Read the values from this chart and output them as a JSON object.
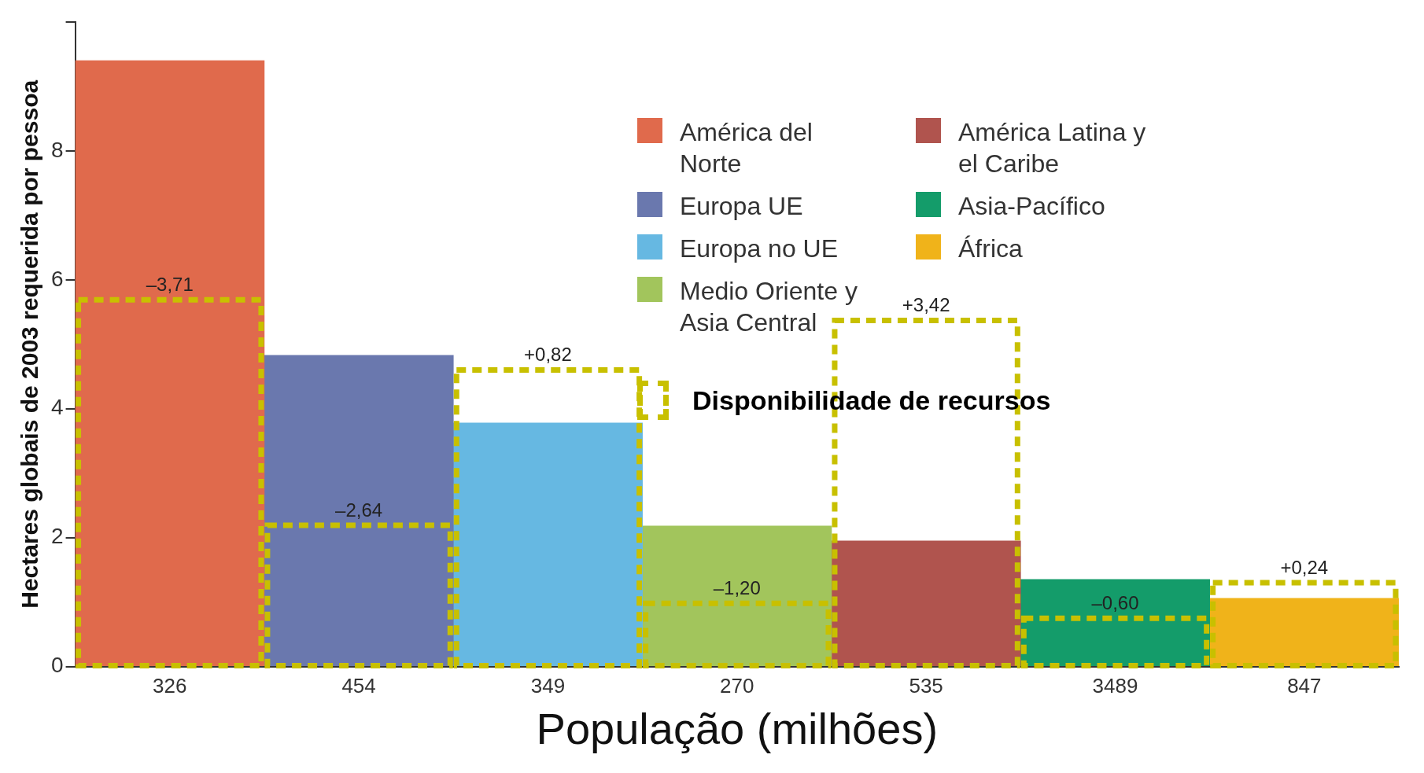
{
  "chart_data": {
    "type": "bar",
    "xlabel": "População (milhões)",
    "ylabel": "Hectares globais de 2003 requerida por pessoa",
    "categories": [
      "326",
      "454",
      "349",
      "270",
      "535",
      "3489",
      "847"
    ],
    "series": [
      {
        "name": "América del Norte",
        "color": "#e06a4c",
        "values": [
          9.4,
          null,
          null,
          null,
          null,
          null,
          null
        ]
      },
      {
        "name": "Europa UE",
        "color": "#6a78ae",
        "values": [
          null,
          4.83,
          null,
          null,
          null,
          null,
          null
        ]
      },
      {
        "name": "Europa no UE",
        "color": "#66b8e2",
        "values": [
          null,
          null,
          3.78,
          null,
          null,
          null,
          null
        ]
      },
      {
        "name": "Medio Oriente y Asia Central",
        "color": "#a2c55c",
        "values": [
          null,
          null,
          null,
          2.18,
          null,
          null,
          null
        ]
      },
      {
        "name": "América Latina y el Caribe",
        "color": "#b0544e",
        "values": [
          null,
          null,
          null,
          null,
          1.95,
          null,
          null
        ]
      },
      {
        "name": "Asia-Pacífico",
        "color": "#149c6a",
        "values": [
          null,
          null,
          null,
          null,
          null,
          1.35,
          null
        ]
      },
      {
        "name": "África",
        "color": "#f0b31a",
        "values": [
          null,
          null,
          null,
          null,
          null,
          null,
          1.06
        ]
      },
      {
        "name": "Disponibilidade de recursos",
        "color": "#c8c000",
        "line_style": "dashed",
        "values": [
          5.69,
          2.19,
          4.6,
          0.98,
          5.37,
          0.75,
          1.3
        ]
      }
    ],
    "annotations": [
      {
        "text": "–3,71",
        "x": "326",
        "y": 5.69
      },
      {
        "text": "–2,64",
        "x": "454",
        "y": 2.19
      },
      {
        "text": "+0,82",
        "x": "349",
        "y": 4.6
      },
      {
        "text": "–1,20",
        "x": "270",
        "y": 0.98
      },
      {
        "text": "+3,42",
        "x": "535",
        "y": 5.37
      },
      {
        "text": "–0,60",
        "x": "3489",
        "y": 0.75
      },
      {
        "text": "+0,24",
        "x": "847",
        "y": 1.3
      }
    ],
    "ylim": [
      0,
      10
    ],
    "yticks": [
      0,
      2,
      4,
      6,
      8,
      {
        "value": 10,
        "label": null
      }
    ],
    "grid": false,
    "legend": "top right"
  }
}
